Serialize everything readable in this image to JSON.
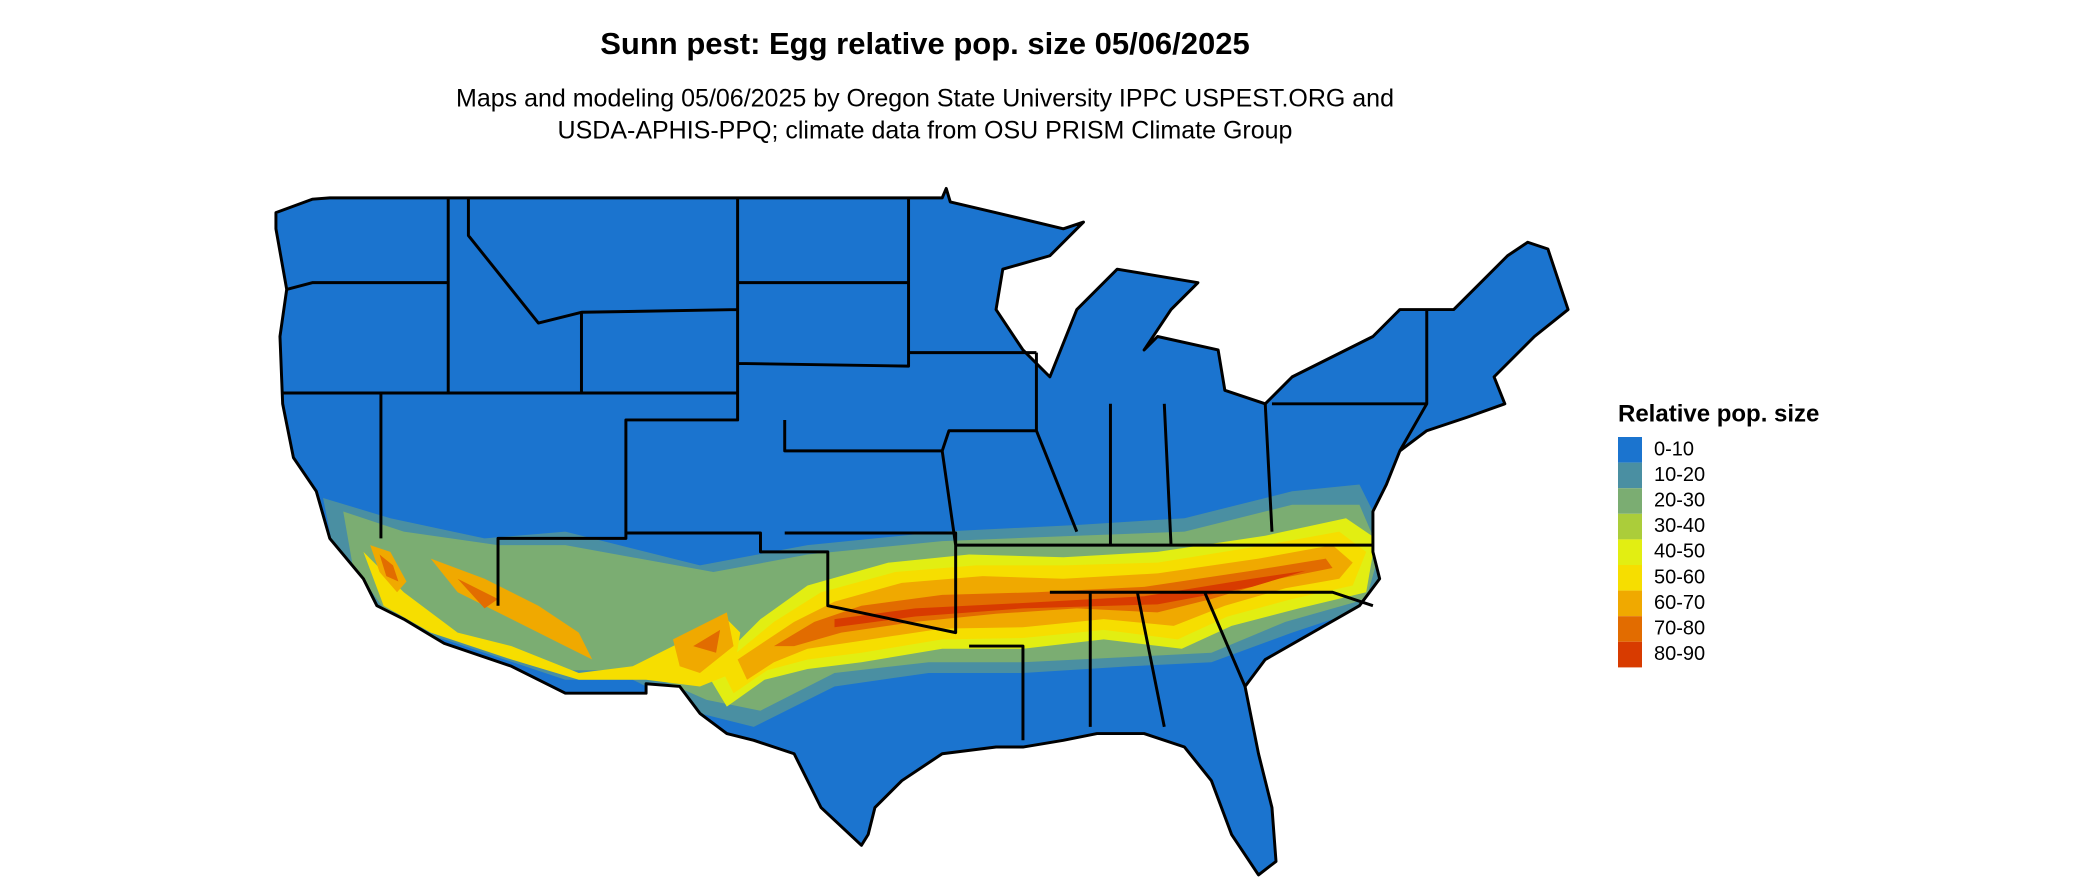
{
  "header": {
    "title": "Sunn pest: Egg relative pop. size 05/06/2025",
    "subtitle": [
      "Maps and modeling 05/06/2025 by Oregon State University IPPC USPEST.ORG and",
      "USDA-APHIS-PPQ; climate data from OSU PRISM Climate Group"
    ]
  },
  "legend": {
    "title": "Relative pop. size",
    "items": [
      {
        "label": "0-10",
        "color": "#1b74cf"
      },
      {
        "label": "10-20",
        "color": "#4a8fa2"
      },
      {
        "label": "20-30",
        "color": "#7bad72"
      },
      {
        "label": "30-40",
        "color": "#abcd3a"
      },
      {
        "label": "40-50",
        "color": "#e2ee12"
      },
      {
        "label": "50-60",
        "color": "#f6de00"
      },
      {
        "label": "60-70",
        "color": "#f0a900"
      },
      {
        "label": "70-80",
        "color": "#e26c00"
      },
      {
        "label": "80-90",
        "color": "#d83b00"
      }
    ]
  }
}
